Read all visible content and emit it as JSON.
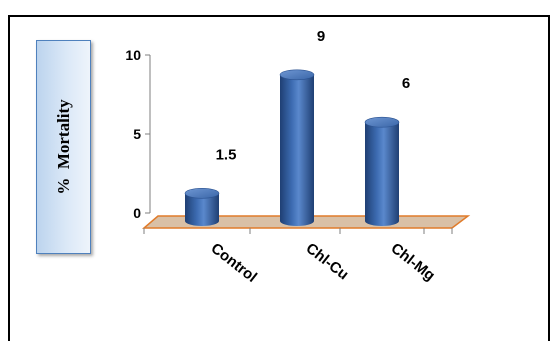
{
  "chart_data": {
    "type": "bar",
    "style": "3d-cylinder",
    "categories": [
      "Control",
      "Chl-Cu",
      "Chl-Mg"
    ],
    "values": [
      1.5,
      9,
      6
    ],
    "data_labels": [
      "1.5",
      "9",
      "6"
    ],
    "ylabel": "%  Mortality",
    "ylim": [
      0,
      10
    ],
    "yticks": [
      "0",
      "5",
      "10"
    ],
    "grid": false,
    "legend": "none",
    "colors": {
      "bar": "#3a66a8",
      "floor": "#d9c0a6",
      "floor_edge": "#e07b2a"
    }
  }
}
